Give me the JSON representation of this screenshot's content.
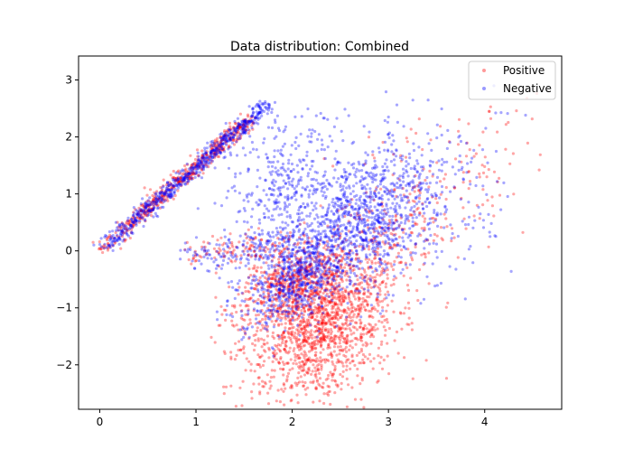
{
  "chart_data": {
    "type": "scatter",
    "title": "Data distribution: Combined",
    "xlabel": "",
    "ylabel": "",
    "xlim": [
      -0.22,
      4.8
    ],
    "ylim": [
      -2.78,
      3.42
    ],
    "xticks": [
      0,
      1,
      2,
      3,
      4
    ],
    "yticks": [
      -2,
      -1,
      0,
      1,
      2,
      3
    ],
    "grid": false,
    "legend_position": "top-right",
    "series": [
      {
        "name": "Positive",
        "color": "#ff0000",
        "marker": "o",
        "alpha": 0.4
      },
      {
        "name": "Negative",
        "color": "#0000ff",
        "marker": "o",
        "alpha": 0.4
      }
    ],
    "distribution": {
      "Positive": {
        "points_approx": 2600,
        "clusters": [
          {
            "description": "diagonal band",
            "x_range": [
              0.0,
              1.6
            ],
            "y_range": [
              0.0,
              2.2
            ]
          },
          {
            "description": "main cloud",
            "center": [
              2.4,
              -1.2
            ],
            "x_spread": [
              1.6,
              3.3
            ],
            "y_spread": [
              -2.5,
              1.0
            ]
          },
          {
            "description": "sparse tail",
            "x_range": [
              3.0,
              4.55
            ],
            "y_range": [
              -1.0,
              2.7
            ]
          }
        ]
      },
      "Negative": {
        "points_approx": 2600,
        "clusters": [
          {
            "description": "diagonal band",
            "x_range": [
              0.0,
              1.8
            ],
            "y_range": [
              0.0,
              2.6
            ]
          },
          {
            "description": "main cloud",
            "center": [
              2.6,
              0.4
            ],
            "x_spread": [
              1.4,
              3.6
            ],
            "y_spread": [
              -1.5,
              2.0
            ]
          },
          {
            "description": "sparse tail",
            "x_range": [
              3.0,
              4.3
            ],
            "y_range": [
              -1.1,
              3.15
            ]
          }
        ]
      }
    }
  }
}
